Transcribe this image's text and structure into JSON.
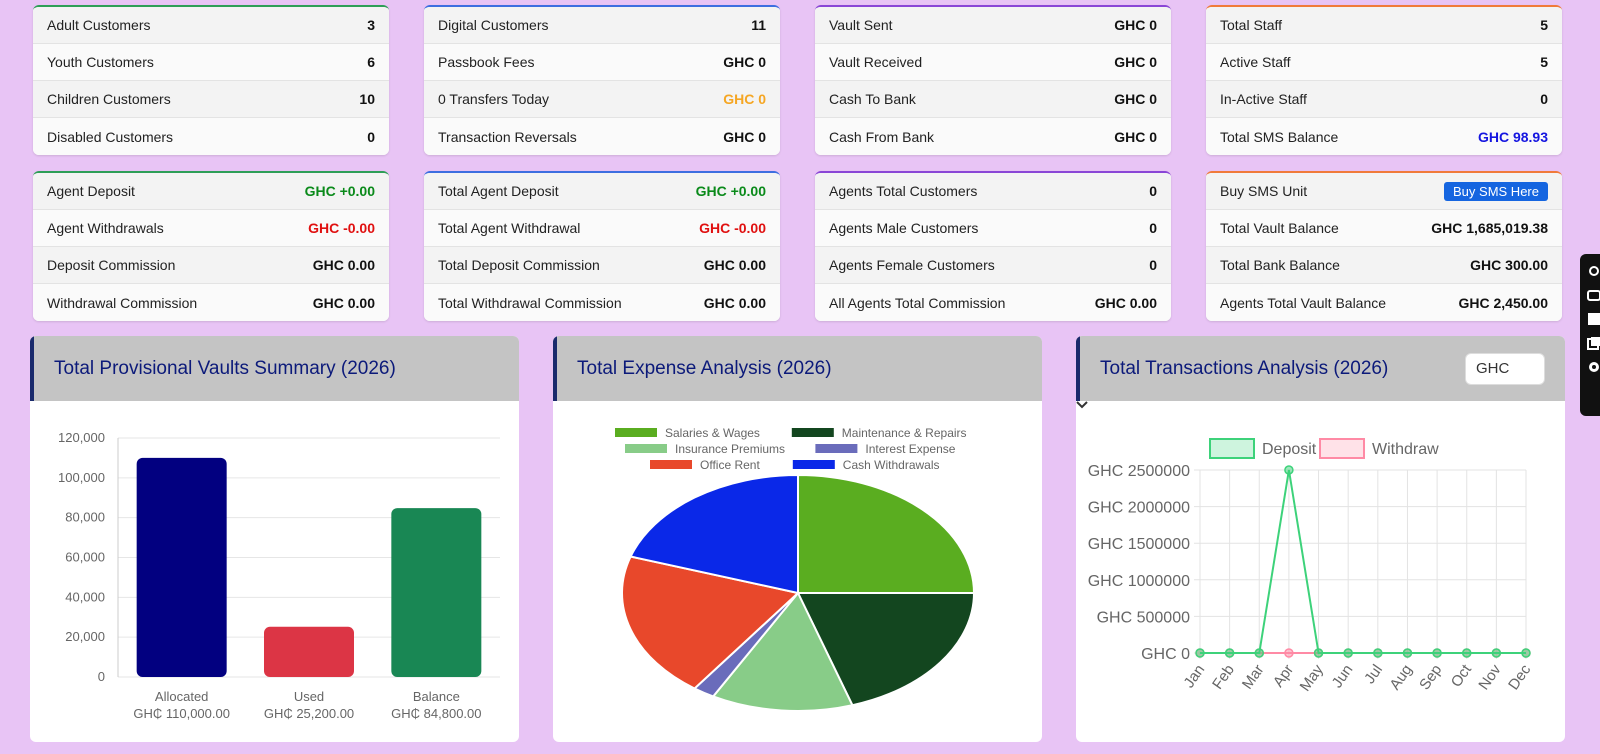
{
  "cards": [
    [
      {
        "label": "Adult Customers",
        "value": "3"
      },
      {
        "label": "Youth Customers",
        "value": "6"
      },
      {
        "label": "Children Customers",
        "value": "10"
      },
      {
        "label": "Disabled Customers",
        "value": "0"
      }
    ],
    [
      {
        "label": "Digital Customers",
        "value": "11"
      },
      {
        "label": "Passbook Fees",
        "value": "GHC 0"
      },
      {
        "label": "0 Transfers Today",
        "value": "GHC 0"
      },
      {
        "label": "Transaction Reversals",
        "value": "GHC 0"
      }
    ],
    [
      {
        "label": "Vault Sent",
        "value": "GHC 0"
      },
      {
        "label": "Vault Received",
        "value": "GHC 0"
      },
      {
        "label": "Cash To Bank",
        "value": "GHC 0"
      },
      {
        "label": "Cash From Bank",
        "value": "GHC 0"
      }
    ],
    [
      {
        "label": "Total Staff",
        "value": "5"
      },
      {
        "label": "Active Staff",
        "value": "5"
      },
      {
        "label": "In-Active Staff",
        "value": "0"
      },
      {
        "label": "Total SMS Balance",
        "value": "GHC 98.93"
      }
    ],
    [
      {
        "label": "Agent Deposit",
        "value": "GHC +0.00"
      },
      {
        "label": "Agent Withdrawals",
        "value": "GHC -0.00"
      },
      {
        "label": "Deposit Commission",
        "value": "GHC 0.00"
      },
      {
        "label": "Withdrawal Commission",
        "value": "GHC 0.00"
      }
    ],
    [
      {
        "label": "Total Agent Deposit",
        "value": "GHC +0.00"
      },
      {
        "label": "Total Agent Withdrawal",
        "value": "GHC -0.00"
      },
      {
        "label": "Total Deposit Commission",
        "value": "GHC 0.00"
      },
      {
        "label": "Total Withdrawal Commission",
        "value": "GHC 0.00"
      }
    ],
    [
      {
        "label": "Agents Total Customers",
        "value": "0"
      },
      {
        "label": "Agents Male Customers",
        "value": "0"
      },
      {
        "label": "Agents Female Customers",
        "value": "0"
      },
      {
        "label": "All Agents Total Commission",
        "value": "GHC 0.00"
      }
    ],
    [
      {
        "label": "Buy SMS Unit",
        "value": "Buy SMS Here"
      },
      {
        "label": "Total Vault Balance",
        "value": "GHC 1,685,019.38"
      },
      {
        "label": "Total Bank Balance",
        "value": "GHC 300.00"
      },
      {
        "label": "Agents Total Vault Balance",
        "value": "GHC 2,450.00"
      }
    ]
  ],
  "panels": {
    "vaults_title": "Total Provisional Vaults Summary (2026)",
    "expense_title": "Total Expense Analysis (2026)",
    "transactions_title": "Total Transactions Analysis (2026)",
    "currency_select": "GHC"
  },
  "chart_data": [
    {
      "type": "bar",
      "categories": [
        "Allocated",
        "Used",
        "Balance"
      ],
      "category_sublabels": [
        "GH₵ 110,000.00",
        "GH₵ 25,200.00",
        "GH₵ 84,800.00"
      ],
      "values": [
        110000,
        25200,
        84800
      ],
      "colors": [
        "#020080",
        "#dc3545",
        "#198754"
      ],
      "ylim": [
        0,
        120000
      ],
      "yticks": [
        "0",
        "20,000",
        "40,000",
        "60,000",
        "80,000",
        "100,000",
        "120,000"
      ],
      "grid": true
    },
    {
      "type": "pie",
      "legend": [
        "Salaries & Wages",
        "Maintenance & Repairs",
        "Insurance Premiums",
        "Interest Expense",
        "Office Rent",
        "Cash Withdrawals"
      ],
      "values": [
        25,
        20,
        13,
        2,
        20,
        20
      ],
      "colors": [
        "#5aad20",
        "#13461f",
        "#88cc88",
        "#6a6cbb",
        "#e8482b",
        "#0a28e8"
      ],
      "legend_position": "top"
    },
    {
      "type": "line",
      "categories": [
        "Jan",
        "Feb",
        "Mar",
        "Apr",
        "May",
        "Jun",
        "Jul",
        "Aug",
        "Sep",
        "Oct",
        "Nov",
        "Dec"
      ],
      "series": [
        {
          "name": "Deposit",
          "values": [
            0,
            0,
            0,
            2500000,
            0,
            0,
            0,
            0,
            0,
            0,
            0,
            0
          ],
          "color": "#3dd27a"
        },
        {
          "name": "Withdraw",
          "values": [
            0,
            0,
            0,
            0,
            0,
            0,
            0,
            0,
            0,
            0,
            0,
            0
          ],
          "color": "#ff8aa5"
        }
      ],
      "ylim": [
        0,
        2500000
      ],
      "yticks": [
        "GHC 0",
        "GHC 500000",
        "GHC 1000000",
        "GHC 1500000",
        "GHC 2000000",
        "GHC 2500000"
      ],
      "legend_position": "top",
      "grid": true
    }
  ]
}
